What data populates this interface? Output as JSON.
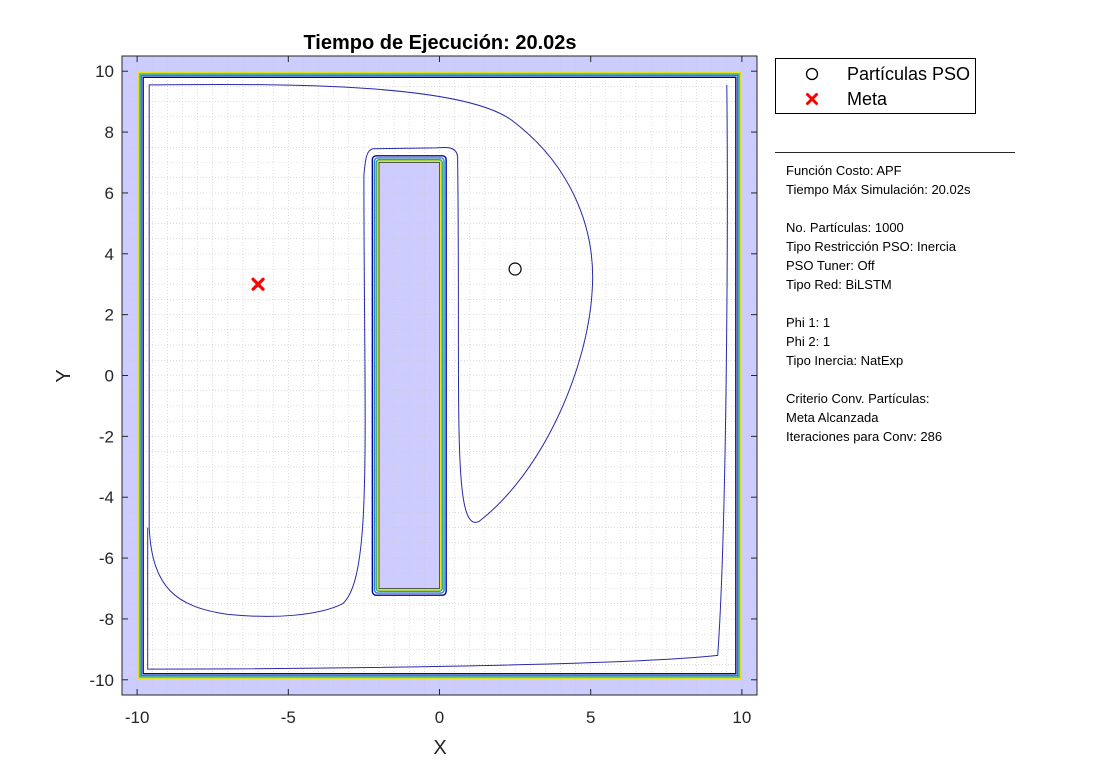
{
  "chart_data": {
    "type": "contour",
    "title": "Tiempo de Ejecución: 20.02s",
    "xlabel": "X",
    "ylabel": "Y",
    "xlim": [
      -10.5,
      10.5
    ],
    "ylim": [
      -10.5,
      10.5
    ],
    "xticks": [
      -10,
      -5,
      0,
      5,
      10
    ],
    "yticks": [
      -10,
      -8,
      -6,
      -4,
      -2,
      0,
      2,
      4,
      6,
      8,
      10
    ],
    "grid": "minor-dotted",
    "background_color": "#ccccff",
    "legend_position": "outside-top-right",
    "series": [
      {
        "name": "Partículas PSO",
        "marker": "circle",
        "color": "#000000",
        "points": [
          [
            2.5,
            3.5
          ]
        ]
      },
      {
        "name": "Meta",
        "marker": "x",
        "color": "#ff0000",
        "points": [
          [
            -6,
            3
          ]
        ]
      }
    ],
    "obstacles": [
      {
        "x_range": [
          -10,
          10
        ],
        "y_range": [
          -10,
          10
        ],
        "kind": "boundary"
      },
      {
        "x_range": [
          -2,
          0
        ],
        "y_range": [
          -7,
          7
        ],
        "kind": "wall"
      }
    ],
    "contour_colors": [
      "#0000aa",
      "#2b83ba",
      "#1fa98a",
      "#cde020",
      "#f4e01c"
    ]
  },
  "legend": {
    "items": [
      {
        "label": "Partículas PSO",
        "icon": "open-circle"
      },
      {
        "label": "Meta",
        "icon": "red-x"
      }
    ]
  },
  "info_panel": {
    "groups": [
      [
        "Función Costo: APF",
        "Tiempo Máx Simulación: 20.02s"
      ],
      [
        "No. Partículas: 1000",
        "Tipo Restricción PSO: Inercia",
        "PSO Tuner: Off",
        "Tipo Red: BiLSTM"
      ],
      [
        "Phi 1: 1",
        "Phi 2: 1",
        "Tipo Inercia: NatExp"
      ],
      [
        "Criterio Conv. Partículas:",
        "Meta Alcanzada",
        "Iteraciones para Conv: 286"
      ]
    ]
  }
}
